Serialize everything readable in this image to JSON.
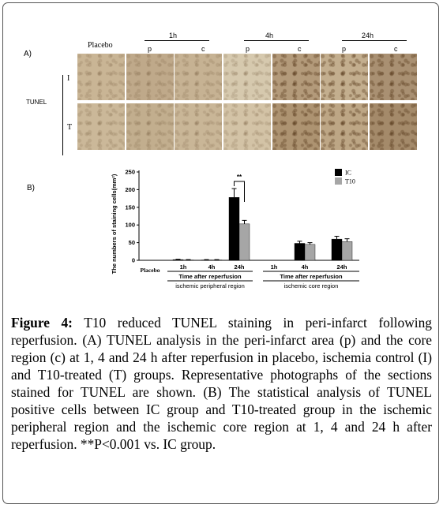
{
  "panel_a": {
    "label": "A)",
    "placebo": "Placebo",
    "timepoints": [
      "1h",
      "4h",
      "24h"
    ],
    "p": "p",
    "c": "c",
    "row_label": "TUNEL",
    "row_i": "I",
    "row_t": "T"
  },
  "panel_b": {
    "label": "B)"
  },
  "chart_data": {
    "type": "bar",
    "ylabel": "The numbers of staining cells(mm²)",
    "ylim": [
      0,
      250
    ],
    "yticks": [
      "0",
      "50",
      "100",
      "150",
      "200",
      "250"
    ],
    "categories": [
      "Placebo",
      "1h",
      "4h",
      "24h",
      "1h",
      "4h",
      "24h"
    ],
    "xlabel_time": "Time after reperfusion",
    "group_labels": [
      "ischemic peripheral region",
      "ischemic core region"
    ],
    "series": [
      {
        "name": "IC",
        "color": "#000000",
        "values": [
          0,
          2,
          1,
          178,
          0,
          48,
          60
        ],
        "errors": [
          0,
          1,
          1,
          25,
          0,
          6,
          8
        ]
      },
      {
        "name": "T10",
        "color": "#a6a6a6",
        "values": [
          0,
          1,
          1,
          103,
          0,
          45,
          53
        ],
        "errors": [
          0,
          1,
          1,
          10,
          0,
          5,
          8
        ]
      }
    ],
    "significance": "**"
  },
  "caption": {
    "figure_label": "Figure 4:",
    "text": "T10 reduced TUNEL staining in peri-infarct following reperfusion. (A) TUNEL analysis in the peri-infarct area (p) and the core region (c) at 1, 4 and 24 h after reperfusion in placebo, ischemia control (I) and T10-treated (T) groups. Representative photographs of the sections stained for TUNEL are shown. (B) The statistical analysis of TUNEL positive cells between IC group and T10-treated group in the ischemic peripheral region and the ischemic core region at 1, 4 and 24 h after reperfusion. **P<0.001 vs. IC group."
  }
}
